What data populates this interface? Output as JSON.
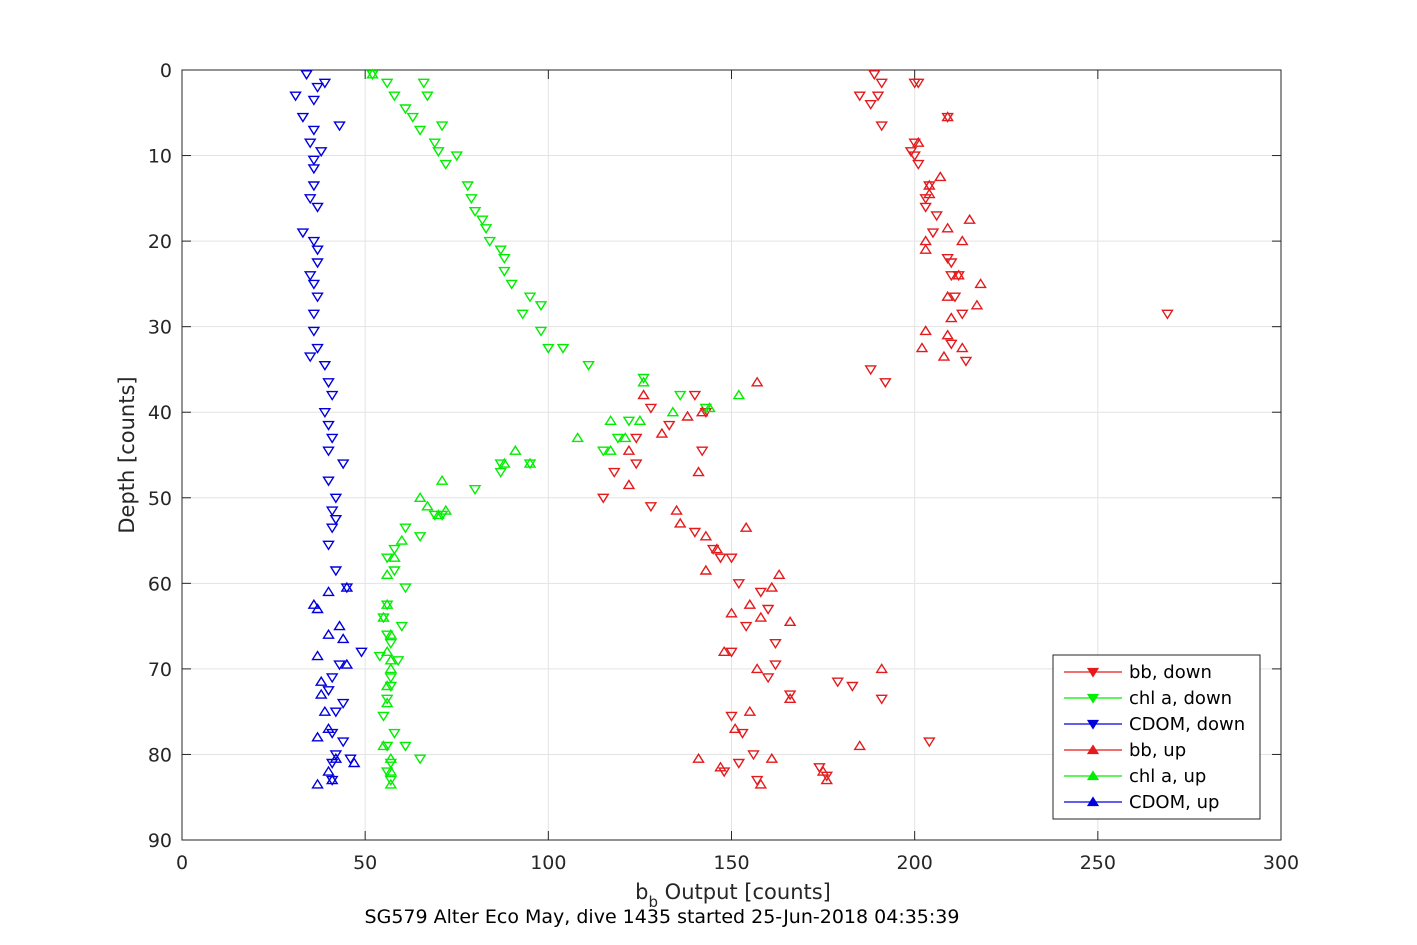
{
  "chart_data": {
    "type": "scatter",
    "title": "",
    "caption": "SG579 Alter Eco May, dive 1435 started 25-Jun-2018 04:35:39",
    "xlabel_main": "b",
    "xlabel_sub": "b",
    "xlabel_rest": " Output [counts]",
    "ylabel": "Depth [counts]",
    "xlim": [
      0,
      300
    ],
    "ylim": [
      0,
      90
    ],
    "y_reversed": true,
    "grid": true,
    "legend_position": "bottom-right",
    "x_ticks": [
      "0",
      "50",
      "100",
      "150",
      "200",
      "250",
      "300"
    ],
    "y_ticks": [
      "0",
      "10",
      "20",
      "30",
      "40",
      "50",
      "60",
      "70",
      "80",
      "90"
    ],
    "series": [
      {
        "name": "bb, down",
        "color": "#e41a1c",
        "marker": "triangle-down",
        "points": [
          [
            189,
            0.5
          ],
          [
            191,
            1.5
          ],
          [
            190,
            3
          ],
          [
            185,
            3
          ],
          [
            188,
            4
          ],
          [
            191,
            6.5
          ],
          [
            200,
            1.5
          ],
          [
            201,
            1.5
          ],
          [
            209,
            5.5
          ],
          [
            200,
            8.5
          ],
          [
            199,
            9.5
          ],
          [
            200,
            10
          ],
          [
            201,
            11
          ],
          [
            204,
            13.5
          ],
          [
            203,
            15
          ],
          [
            203,
            16
          ],
          [
            206,
            17
          ],
          [
            205,
            19
          ],
          [
            209,
            22
          ],
          [
            210,
            22.5
          ],
          [
            210,
            24
          ],
          [
            212,
            24
          ],
          [
            211,
            26.5
          ],
          [
            213,
            28.5
          ],
          [
            210,
            32
          ],
          [
            214,
            34
          ],
          [
            188,
            35
          ],
          [
            192,
            36.5
          ],
          [
            269,
            28.5
          ],
          [
            140,
            38
          ],
          [
            128,
            39.5
          ],
          [
            124,
            43
          ],
          [
            133,
            41.5
          ],
          [
            143,
            40
          ],
          [
            142,
            44.5
          ],
          [
            124,
            46
          ],
          [
            118,
            47
          ],
          [
            115,
            50
          ],
          [
            128,
            51
          ],
          [
            140,
            54
          ],
          [
            145,
            56
          ],
          [
            147,
            57
          ],
          [
            150,
            57
          ],
          [
            152,
            60
          ],
          [
            158,
            61
          ],
          [
            160,
            63
          ],
          [
            154,
            65
          ],
          [
            150,
            68
          ],
          [
            162,
            67
          ],
          [
            162,
            69.5
          ],
          [
            160,
            71
          ],
          [
            150,
            75.5
          ],
          [
            153,
            77.5
          ],
          [
            166,
            73
          ],
          [
            179,
            71.5
          ],
          [
            183,
            72
          ],
          [
            191,
            73.5
          ],
          [
            204,
            78.5
          ],
          [
            156,
            80
          ],
          [
            152,
            81
          ],
          [
            148,
            82
          ],
          [
            157,
            83
          ],
          [
            174,
            81.5
          ],
          [
            176,
            82.5
          ]
        ]
      },
      {
        "name": "chl a, down",
        "color": "#00ee00",
        "marker": "triangle-down",
        "points": [
          [
            52,
            0.5
          ],
          [
            66,
            1.5
          ],
          [
            56,
            1.5
          ],
          [
            67,
            3
          ],
          [
            58,
            3
          ],
          [
            61,
            4.5
          ],
          [
            63,
            5.5
          ],
          [
            65,
            7
          ],
          [
            71,
            6.5
          ],
          [
            69,
            8.5
          ],
          [
            70,
            9.5
          ],
          [
            75,
            10
          ],
          [
            72,
            11
          ],
          [
            78,
            13.5
          ],
          [
            79,
            15
          ],
          [
            80,
            16.5
          ],
          [
            82,
            17.5
          ],
          [
            83,
            18.5
          ],
          [
            84,
            20
          ],
          [
            87,
            21
          ],
          [
            88,
            22
          ],
          [
            88,
            23.5
          ],
          [
            90,
            25
          ],
          [
            95,
            26.5
          ],
          [
            93,
            28.5
          ],
          [
            98,
            27.5
          ],
          [
            98,
            30.5
          ],
          [
            100,
            32.5
          ],
          [
            104,
            32.5
          ],
          [
            111,
            34.5
          ],
          [
            126,
            36
          ],
          [
            136,
            38
          ],
          [
            143,
            39.5
          ],
          [
            122,
            41
          ],
          [
            119,
            43
          ],
          [
            115,
            44.5
          ],
          [
            95,
            46
          ],
          [
            87,
            47
          ],
          [
            87,
            46
          ],
          [
            80,
            49
          ],
          [
            71,
            52
          ],
          [
            69,
            52
          ],
          [
            65,
            54.5
          ],
          [
            61,
            53.5
          ],
          [
            58,
            56
          ],
          [
            56,
            57
          ],
          [
            58,
            58.5
          ],
          [
            61,
            60.5
          ],
          [
            56,
            62.5
          ],
          [
            55,
            64
          ],
          [
            60,
            65
          ],
          [
            56,
            66
          ],
          [
            57,
            67
          ],
          [
            59,
            69
          ],
          [
            54,
            68.5
          ],
          [
            57,
            71
          ],
          [
            57,
            72
          ],
          [
            56,
            73.5
          ],
          [
            55,
            75.5
          ],
          [
            58,
            77.5
          ],
          [
            56,
            79
          ],
          [
            61,
            79
          ],
          [
            57,
            81
          ],
          [
            56,
            82
          ],
          [
            57,
            83
          ],
          [
            65,
            80.5
          ]
        ]
      },
      {
        "name": "CDOM, down",
        "color": "#0000dd",
        "marker": "triangle-down",
        "points": [
          [
            34,
            0.5
          ],
          [
            39,
            1.5
          ],
          [
            37,
            2
          ],
          [
            31,
            3
          ],
          [
            36,
            3.5
          ],
          [
            33,
            5.5
          ],
          [
            43,
            6.5
          ],
          [
            36,
            7
          ],
          [
            35,
            8.5
          ],
          [
            38,
            9.5
          ],
          [
            36,
            10.5
          ],
          [
            36,
            11.5
          ],
          [
            36,
            13.5
          ],
          [
            35,
            15
          ],
          [
            37,
            16
          ],
          [
            33,
            19
          ],
          [
            36,
            20
          ],
          [
            37,
            21
          ],
          [
            37,
            22.5
          ],
          [
            35,
            24
          ],
          [
            36,
            25
          ],
          [
            37,
            26.5
          ],
          [
            36,
            28.5
          ],
          [
            36,
            30.5
          ],
          [
            37,
            32.5
          ],
          [
            35,
            33.5
          ],
          [
            39,
            34.5
          ],
          [
            40,
            36.5
          ],
          [
            41,
            38
          ],
          [
            39,
            40
          ],
          [
            40,
            41.5
          ],
          [
            41,
            43
          ],
          [
            40,
            44.5
          ],
          [
            44,
            46
          ],
          [
            40,
            48
          ],
          [
            42,
            50
          ],
          [
            41,
            51.5
          ],
          [
            42,
            52.5
          ],
          [
            41,
            53.5
          ],
          [
            40,
            55.5
          ],
          [
            42,
            58.5
          ],
          [
            45,
            60.5
          ],
          [
            49,
            68
          ],
          [
            43,
            69.5
          ],
          [
            41,
            71
          ],
          [
            40,
            72.5
          ],
          [
            44,
            74
          ],
          [
            42,
            75
          ],
          [
            41,
            77.5
          ],
          [
            42,
            80
          ],
          [
            41,
            81
          ],
          [
            41,
            83
          ],
          [
            44,
            78.5
          ],
          [
            46,
            80.5
          ]
        ]
      },
      {
        "name": "bb, up",
        "color": "#e41a1c",
        "marker": "triangle-up",
        "points": [
          [
            209,
            5.5
          ],
          [
            201,
            8.5
          ],
          [
            204,
            13.5
          ],
          [
            207,
            12.5
          ],
          [
            204,
            14.5
          ],
          [
            215,
            17.5
          ],
          [
            209,
            18.5
          ],
          [
            213,
            20
          ],
          [
            203,
            20
          ],
          [
            203,
            21
          ],
          [
            212,
            24
          ],
          [
            218,
            25
          ],
          [
            217,
            27.5
          ],
          [
            209,
            26.5
          ],
          [
            210,
            29
          ],
          [
            203,
            30.5
          ],
          [
            209,
            31
          ],
          [
            202,
            32.5
          ],
          [
            213,
            32.5
          ],
          [
            208,
            33.5
          ],
          [
            157,
            36.5
          ],
          [
            126,
            38
          ],
          [
            131,
            42.5
          ],
          [
            142,
            40
          ],
          [
            138,
            40.5
          ],
          [
            122,
            44.5
          ],
          [
            141,
            47
          ],
          [
            122,
            48.5
          ],
          [
            135,
            51.5
          ],
          [
            136,
            53
          ],
          [
            154,
            53.5
          ],
          [
            143,
            54.5
          ],
          [
            146,
            56
          ],
          [
            143,
            58.5
          ],
          [
            163,
            59
          ],
          [
            155,
            62.5
          ],
          [
            161,
            60.5
          ],
          [
            150,
            63.5
          ],
          [
            158,
            64
          ],
          [
            166,
            64.5
          ],
          [
            148,
            68
          ],
          [
            157,
            70
          ],
          [
            191,
            70
          ],
          [
            166,
            73.5
          ],
          [
            155,
            75
          ],
          [
            151,
            77
          ],
          [
            141,
            80.5
          ],
          [
            161,
            80.5
          ],
          [
            147,
            81.5
          ],
          [
            185,
            79
          ],
          [
            175,
            82
          ],
          [
            176,
            83
          ],
          [
            158,
            83.5
          ]
        ]
      },
      {
        "name": "chl a, up",
        "color": "#00ee00",
        "marker": "triangle-up",
        "points": [
          [
            52,
            0.5
          ],
          [
            126,
            36.5
          ],
          [
            152,
            38
          ],
          [
            144,
            39.5
          ],
          [
            134,
            40
          ],
          [
            117,
            41
          ],
          [
            125,
            41
          ],
          [
            121,
            43
          ],
          [
            108,
            43
          ],
          [
            117,
            44.5
          ],
          [
            91,
            44.5
          ],
          [
            88,
            46
          ],
          [
            95,
            46
          ],
          [
            71,
            48
          ],
          [
            72,
            51.5
          ],
          [
            70,
            52
          ],
          [
            65,
            50
          ],
          [
            67,
            51
          ],
          [
            60,
            55
          ],
          [
            58,
            57
          ],
          [
            56,
            59
          ],
          [
            56,
            62.5
          ],
          [
            55,
            64
          ],
          [
            57,
            66
          ],
          [
            56,
            68
          ],
          [
            57,
            69
          ],
          [
            57,
            70
          ],
          [
            56,
            72
          ],
          [
            56,
            74
          ],
          [
            55,
            79
          ],
          [
            57,
            80.5
          ],
          [
            57,
            82
          ],
          [
            57,
            83.5
          ]
        ]
      },
      {
        "name": "CDOM, up",
        "color": "#0000dd",
        "marker": "triangle-up",
        "points": [
          [
            36,
            62.5
          ],
          [
            37,
            63
          ],
          [
            45,
            60.5
          ],
          [
            40,
            61
          ],
          [
            40,
            66
          ],
          [
            43,
            65
          ],
          [
            44,
            66.5
          ],
          [
            37,
            68.5
          ],
          [
            45,
            69.5
          ],
          [
            38,
            71.5
          ],
          [
            38,
            73
          ],
          [
            39,
            75
          ],
          [
            40,
            77
          ],
          [
            37,
            78
          ],
          [
            42,
            80.5
          ],
          [
            40,
            82
          ],
          [
            41,
            83
          ],
          [
            37,
            83.5
          ],
          [
            47,
            81
          ]
        ]
      }
    ]
  }
}
